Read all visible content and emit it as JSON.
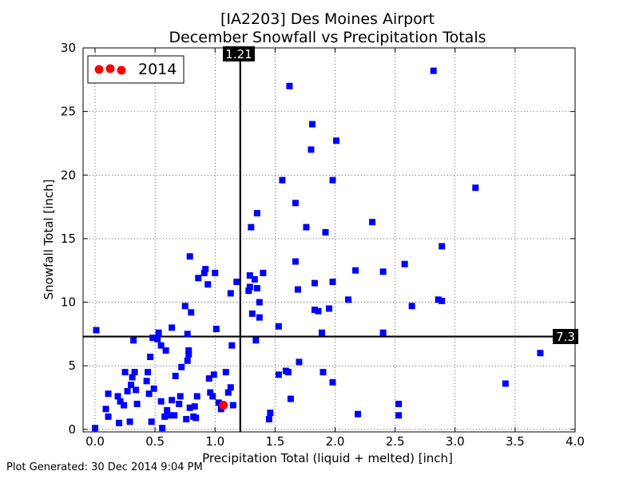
{
  "chart_data": {
    "type": "scatter",
    "title": "[IA2203] Des Moines Airport",
    "subtitle": "December Snowfall vs Precipitation Totals",
    "xlabel": "Precipitation Total (liquid + melted) [inch]",
    "ylabel": "Snowfall Total [inch]",
    "xlim": [
      -0.1,
      4.0
    ],
    "ylim": [
      -0.2,
      30
    ],
    "xticks": [
      "0.0",
      "0.5",
      "1.0",
      "1.5",
      "2.0",
      "2.5",
      "3.0",
      "3.5",
      "4.0"
    ],
    "yticks": [
      "0",
      "5",
      "10",
      "15",
      "20",
      "25",
      "30"
    ],
    "grid": true,
    "legend": "top-left",
    "mean_x": 1.21,
    "mean_x_label": "1.21",
    "mean_y": 7.3,
    "mean_y_label": "7.3",
    "colors": {
      "history": "#0000ff",
      "highlight": "#ff0000"
    },
    "series": [
      {
        "points": [
          [
            0.0,
            0.1
          ],
          [
            0.01,
            7.8
          ],
          [
            0.09,
            1.6
          ],
          [
            0.11,
            1.0
          ],
          [
            0.11,
            2.8
          ],
          [
            0.19,
            2.6
          ],
          [
            0.2,
            0.5
          ],
          [
            0.21,
            2.2
          ],
          [
            0.24,
            1.9
          ],
          [
            0.25,
            4.5
          ],
          [
            0.27,
            3.0
          ],
          [
            0.29,
            0.6
          ],
          [
            0.3,
            3.5
          ],
          [
            0.31,
            4.1
          ],
          [
            0.32,
            7.0
          ],
          [
            0.33,
            4.5
          ],
          [
            0.34,
            3.1
          ],
          [
            0.35,
            2.0
          ],
          [
            0.43,
            3.8
          ],
          [
            0.44,
            4.5
          ],
          [
            0.45,
            2.8
          ],
          [
            0.46,
            5.7
          ],
          [
            0.47,
            0.6
          ],
          [
            0.48,
            7.2
          ],
          [
            0.49,
            3.2
          ],
          [
            0.52,
            7.1
          ],
          [
            0.53,
            7.6
          ],
          [
            0.55,
            6.6
          ],
          [
            0.55,
            2.2
          ],
          [
            0.56,
            0.1
          ],
          [
            0.58,
            1.0
          ],
          [
            0.59,
            6.2
          ],
          [
            0.6,
            1.5
          ],
          [
            0.62,
            1.1
          ],
          [
            0.64,
            2.3
          ],
          [
            0.64,
            8.0
          ],
          [
            0.66,
            1.1
          ],
          [
            0.67,
            4.2
          ],
          [
            0.7,
            2.0
          ],
          [
            0.71,
            2.6
          ],
          [
            0.72,
            4.9
          ],
          [
            0.75,
            9.7
          ],
          [
            0.76,
            0.8
          ],
          [
            0.77,
            5.4
          ],
          [
            0.77,
            7.5
          ],
          [
            0.78,
            6.2
          ],
          [
            0.78,
            5.9
          ],
          [
            0.79,
            1.7
          ],
          [
            0.79,
            13.6
          ],
          [
            0.8,
            9.2
          ],
          [
            0.82,
            1.0
          ],
          [
            0.83,
            1.8
          ],
          [
            0.84,
            0.9
          ],
          [
            0.85,
            2.6
          ],
          [
            0.86,
            11.9
          ],
          [
            0.91,
            12.3
          ],
          [
            0.92,
            12.6
          ],
          [
            0.94,
            11.4
          ],
          [
            0.95,
            4.0
          ],
          [
            0.96,
            2.9
          ],
          [
            0.98,
            2.6
          ],
          [
            0.99,
            4.3
          ],
          [
            1.0,
            12.3
          ],
          [
            1.01,
            7.9
          ],
          [
            1.03,
            2.1
          ],
          [
            1.05,
            1.6
          ],
          [
            1.09,
            4.5
          ],
          [
            1.11,
            2.9
          ],
          [
            1.13,
            3.3
          ],
          [
            1.13,
            10.7
          ],
          [
            1.14,
            6.6
          ],
          [
            1.15,
            1.9
          ],
          [
            1.18,
            11.6
          ],
          [
            1.28,
            10.9
          ],
          [
            1.29,
            11.2
          ],
          [
            1.29,
            12.1
          ],
          [
            1.3,
            15.9
          ],
          [
            1.31,
            9.1
          ],
          [
            1.33,
            11.8
          ],
          [
            1.34,
            7.0
          ],
          [
            1.35,
            17.0
          ],
          [
            1.35,
            11.1
          ],
          [
            1.37,
            8.8
          ],
          [
            1.37,
            10.0
          ],
          [
            1.4,
            12.3
          ],
          [
            1.45,
            0.8
          ],
          [
            1.46,
            1.3
          ],
          [
            1.53,
            8.1
          ],
          [
            1.53,
            4.3
          ],
          [
            1.56,
            19.6
          ],
          [
            1.59,
            4.6
          ],
          [
            1.61,
            4.5
          ],
          [
            1.62,
            27.0
          ],
          [
            1.63,
            2.4
          ],
          [
            1.67,
            17.8
          ],
          [
            1.67,
            13.2
          ],
          [
            1.69,
            11.0
          ],
          [
            1.7,
            5.3
          ],
          [
            1.76,
            15.9
          ],
          [
            1.8,
            22.0
          ],
          [
            1.81,
            24.0
          ],
          [
            1.83,
            11.5
          ],
          [
            1.83,
            9.4
          ],
          [
            1.86,
            9.3
          ],
          [
            1.89,
            7.6
          ],
          [
            1.9,
            4.5
          ],
          [
            1.92,
            15.5
          ],
          [
            1.95,
            9.5
          ],
          [
            1.98,
            19.6
          ],
          [
            1.98,
            3.7
          ],
          [
            1.98,
            11.6
          ],
          [
            2.01,
            22.7
          ],
          [
            2.11,
            10.2
          ],
          [
            2.17,
            12.5
          ],
          [
            2.19,
            1.2
          ],
          [
            2.31,
            16.3
          ],
          [
            2.4,
            12.4
          ],
          [
            2.4,
            7.6
          ],
          [
            2.53,
            2.0
          ],
          [
            2.53,
            1.1
          ],
          [
            2.58,
            13.0
          ],
          [
            2.64,
            9.7
          ],
          [
            2.82,
            28.2
          ],
          [
            2.86,
            10.2
          ],
          [
            2.89,
            14.4
          ],
          [
            2.89,
            10.1
          ],
          [
            3.17,
            19.0
          ],
          [
            3.42,
            3.6
          ],
          [
            3.71,
            6.0
          ]
        ]
      },
      {
        "name": "2014",
        "points": [
          [
            1.07,
            1.9
          ]
        ]
      }
    ]
  },
  "footer": "Plot Generated: 30 Dec 2014 9:04 PM"
}
